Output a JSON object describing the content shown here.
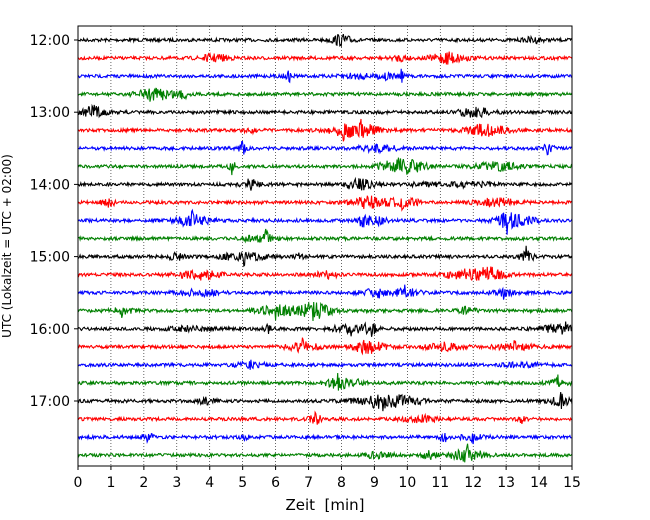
{
  "chart_data": {
    "type": "line",
    "title": "",
    "xlabel": "Zeit  [min]",
    "ylabel": "UTC (Lokalzeit = UTC + 02:00)",
    "xlim": [
      0,
      15
    ],
    "x_ticks": [
      "0",
      "1",
      "2",
      "3",
      "4",
      "5",
      "6",
      "7",
      "8",
      "9",
      "10",
      "11",
      "12",
      "13",
      "14",
      "15"
    ],
    "y_ticks": [
      "12:00",
      "13:00",
      "14:00",
      "15:00",
      "16:00",
      "17:00"
    ],
    "grid": "vertical-dotted",
    "trace_minutes": 15,
    "series_colors": [
      "#000000",
      "#ff0000",
      "#0000ff",
      "#008000"
    ],
    "traces": [
      {
        "start": "12:00",
        "color": "#000000"
      },
      {
        "start": "12:15",
        "color": "#ff0000"
      },
      {
        "start": "12:30",
        "color": "#0000ff"
      },
      {
        "start": "12:45",
        "color": "#008000"
      },
      {
        "start": "13:00",
        "color": "#000000"
      },
      {
        "start": "13:15",
        "color": "#ff0000"
      },
      {
        "start": "13:30",
        "color": "#0000ff"
      },
      {
        "start": "13:45",
        "color": "#008000"
      },
      {
        "start": "14:00",
        "color": "#000000"
      },
      {
        "start": "14:15",
        "color": "#ff0000"
      },
      {
        "start": "14:30",
        "color": "#0000ff"
      },
      {
        "start": "14:45",
        "color": "#008000"
      },
      {
        "start": "15:00",
        "color": "#000000"
      },
      {
        "start": "15:15",
        "color": "#ff0000"
      },
      {
        "start": "15:30",
        "color": "#0000ff"
      },
      {
        "start": "15:45",
        "color": "#008000"
      },
      {
        "start": "16:00",
        "color": "#000000"
      },
      {
        "start": "16:15",
        "color": "#ff0000"
      },
      {
        "start": "16:30",
        "color": "#0000ff"
      },
      {
        "start": "16:45",
        "color": "#008000"
      },
      {
        "start": "17:00",
        "color": "#000000"
      },
      {
        "start": "17:15",
        "color": "#ff0000"
      },
      {
        "start": "17:30",
        "color": "#0000ff"
      },
      {
        "start": "17:45",
        "color": "#008000"
      }
    ]
  }
}
